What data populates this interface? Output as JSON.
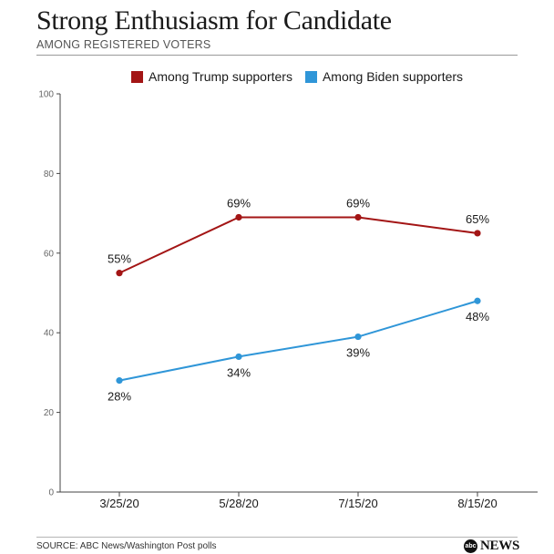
{
  "header": {
    "title": "Strong Enthusiasm for Candidate",
    "subtitle": "AMONG REGISTERED VOTERS"
  },
  "legend": {
    "trump_label": "Among Trump supporters",
    "biden_label": "Among Biden supporters"
  },
  "footer": {
    "source": "SOURCE: ABC News/Washington Post polls",
    "logo_badge": "abc",
    "logo_text": "NEWS"
  },
  "colors": {
    "trump": "#a31515",
    "biden": "#2f96d8",
    "axis": "#444444"
  },
  "chart_data": {
    "type": "line",
    "title": "Strong Enthusiasm for Candidate",
    "subtitle": "AMONG REGISTERED VOTERS",
    "categories": [
      "3/25/20",
      "5/28/20",
      "7/15/20",
      "8/15/20"
    ],
    "ylim": [
      0,
      100
    ],
    "yticks": [
      0,
      20,
      40,
      60,
      80,
      100
    ],
    "grid": false,
    "legend_position": "top",
    "series": [
      {
        "name": "Among Trump supporters",
        "color": "#a31515",
        "values": [
          55,
          69,
          69,
          65
        ],
        "labels": [
          "55%",
          "69%",
          "69%",
          "65%"
        ],
        "label_side": "above"
      },
      {
        "name": "Among Biden supporters",
        "color": "#2f96d8",
        "values": [
          28,
          34,
          39,
          48
        ],
        "labels": [
          "28%",
          "34%",
          "39%",
          "48%"
        ],
        "label_side": "below"
      }
    ]
  }
}
